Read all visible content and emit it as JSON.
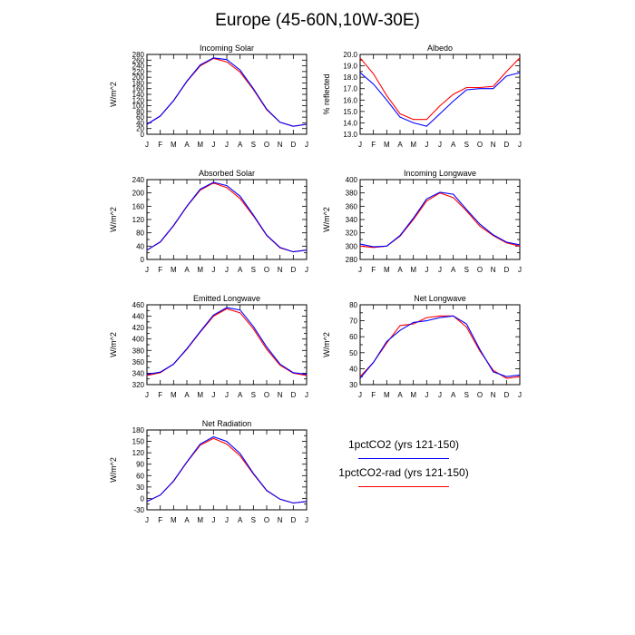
{
  "title": "Europe (45-60N,10W-30E)",
  "months": [
    "J",
    "F",
    "M",
    "A",
    "M",
    "J",
    "J",
    "A",
    "S",
    "O",
    "N",
    "D",
    "J"
  ],
  "legend": {
    "items": [
      {
        "label": "1pctCO2 (yrs 121-150)",
        "color": "#0000ff"
      },
      {
        "label": "1pctCO2-rad (yrs 121-150)",
        "color": "#ff0000"
      }
    ]
  },
  "chart_data": [
    {
      "type": "line",
      "title": "Incoming Solar",
      "ylabel": "W/m^2",
      "ylim": [
        0,
        280
      ],
      "yticks": [
        0,
        20,
        40,
        60,
        80,
        100,
        120,
        140,
        160,
        180,
        200,
        220,
        240,
        260,
        280
      ],
      "ytick_labels": [
        "0",
        "20",
        "40",
        "60",
        "80",
        "100",
        "120",
        "140",
        "160",
        "180",
        "200",
        "220",
        "240",
        "260",
        "280"
      ],
      "categories": [
        "J",
        "F",
        "M",
        "A",
        "M",
        "J",
        "J",
        "A",
        "S",
        "O",
        "N",
        "D",
        "J"
      ],
      "series": [
        {
          "color": "#0000ff",
          "values": [
            35,
            64,
            118,
            186,
            243,
            268,
            262,
            225,
            160,
            88,
            42,
            28,
            35
          ]
        },
        {
          "color": "#ff0000",
          "values": [
            35,
            64,
            117,
            185,
            240,
            266,
            254,
            218,
            157,
            86,
            42,
            28,
            35
          ]
        }
      ]
    },
    {
      "type": "line",
      "title": "Albedo",
      "ylabel": "% reflected",
      "ylim": [
        13,
        20
      ],
      "yticks": [
        13,
        13.5,
        14,
        14.5,
        15,
        15.5,
        16,
        16.5,
        17,
        17.5,
        18,
        18.5,
        19,
        19.5,
        20
      ],
      "ytick_labels": [
        "13.0",
        "",
        "14.0",
        "",
        "15.0",
        "",
        "16.0",
        "",
        "17.0",
        "",
        "18.0",
        "",
        "19.0",
        "",
        "20.0"
      ],
      "categories": [
        "J",
        "F",
        "M",
        "A",
        "M",
        "J",
        "J",
        "A",
        "S",
        "O",
        "N",
        "D",
        "J"
      ],
      "series": [
        {
          "color": "#0000ff",
          "values": [
            18.4,
            17.4,
            16.0,
            14.5,
            14.0,
            13.7,
            14.8,
            15.9,
            16.9,
            17.0,
            17.0,
            18.1,
            18.4
          ]
        },
        {
          "color": "#ff0000",
          "values": [
            19.7,
            18.3,
            16.4,
            14.8,
            14.3,
            14.3,
            15.5,
            16.5,
            17.1,
            17.1,
            17.2,
            18.5,
            19.7
          ]
        }
      ]
    },
    {
      "type": "line",
      "title": "Absorbed Solar",
      "ylabel": "W/m^2",
      "ylim": [
        0,
        240
      ],
      "yticks": [
        0,
        20,
        40,
        60,
        80,
        100,
        120,
        140,
        160,
        180,
        200,
        220,
        240
      ],
      "ytick_labels": [
        "0",
        "",
        "40",
        "",
        "80",
        "",
        "120",
        "",
        "160",
        "",
        "200",
        "",
        "240"
      ],
      "categories": [
        "J",
        "F",
        "M",
        "A",
        "M",
        "J",
        "J",
        "A",
        "S",
        "O",
        "N",
        "D",
        "J"
      ],
      "series": [
        {
          "color": "#0000ff",
          "values": [
            28,
            53,
            102,
            160,
            211,
            232,
            222,
            190,
            134,
            73,
            36,
            23,
            28
          ]
        },
        {
          "color": "#ff0000",
          "values": [
            28,
            52,
            101,
            159,
            208,
            230,
            216,
            183,
            131,
            72,
            35,
            23,
            28
          ]
        }
      ]
    },
    {
      "type": "line",
      "title": "Incoming Longwave",
      "ylabel": "W/m^2",
      "ylim": [
        280,
        400
      ],
      "yticks": [
        280,
        290,
        300,
        310,
        320,
        330,
        340,
        350,
        360,
        370,
        380,
        390,
        400
      ],
      "ytick_labels": [
        "280",
        "",
        "300",
        "",
        "320",
        "",
        "340",
        "",
        "360",
        "",
        "380",
        "",
        "400"
      ],
      "categories": [
        "J",
        "F",
        "M",
        "A",
        "M",
        "J",
        "J",
        "A",
        "S",
        "O",
        "N",
        "D",
        "J"
      ],
      "series": [
        {
          "color": "#0000ff",
          "values": [
            303,
            299,
            300,
            316,
            342,
            371,
            381,
            378,
            355,
            333,
            317,
            306,
            302
          ]
        },
        {
          "color": "#ff0000",
          "values": [
            300,
            298,
            300,
            315,
            340,
            368,
            380,
            373,
            353,
            330,
            316,
            305,
            300
          ]
        }
      ]
    },
    {
      "type": "line",
      "title": "Emitted Longwave",
      "ylabel": "W/m^2",
      "ylim": [
        320,
        460
      ],
      "yticks": [
        320,
        330,
        340,
        350,
        360,
        370,
        380,
        390,
        400,
        410,
        420,
        430,
        440,
        450,
        460
      ],
      "ytick_labels": [
        "320",
        "",
        "340",
        "",
        "360",
        "",
        "380",
        "",
        "400",
        "",
        "420",
        "",
        "440",
        "",
        "460"
      ],
      "categories": [
        "J",
        "F",
        "M",
        "A",
        "M",
        "J",
        "J",
        "A",
        "S",
        "O",
        "N",
        "D",
        "J"
      ],
      "series": [
        {
          "color": "#0000ff",
          "values": [
            338,
            342,
            356,
            383,
            413,
            442,
            455,
            451,
            422,
            386,
            356,
            341,
            338
          ]
        },
        {
          "color": "#ff0000",
          "values": [
            336,
            341,
            356,
            382,
            412,
            440,
            453,
            446,
            418,
            382,
            354,
            340,
            336
          ]
        }
      ]
    },
    {
      "type": "line",
      "title": "Net Longwave",
      "ylabel": "W/m^2",
      "ylim": [
        30,
        80
      ],
      "yticks": [
        30,
        35,
        40,
        45,
        50,
        55,
        60,
        65,
        70,
        75,
        80
      ],
      "ytick_labels": [
        "30",
        "",
        "40",
        "",
        "50",
        "",
        "60",
        "",
        "70",
        "",
        "80"
      ],
      "categories": [
        "J",
        "F",
        "M",
        "A",
        "M",
        "J",
        "J",
        "A",
        "S",
        "O",
        "N",
        "D",
        "J"
      ],
      "series": [
        {
          "color": "#0000ff",
          "values": [
            34,
            44,
            57,
            64,
            69,
            70,
            72,
            73,
            68,
            52,
            38,
            35,
            36
          ]
        },
        {
          "color": "#ff0000",
          "values": [
            35,
            44,
            56,
            67,
            68,
            72,
            73,
            73,
            66,
            51,
            39,
            34,
            35
          ]
        }
      ]
    },
    {
      "type": "line",
      "title": "Net Radiation",
      "ylabel": "W/m^2",
      "ylim": [
        -30,
        180
      ],
      "yticks": [
        -30,
        -15,
        0,
        15,
        30,
        45,
        60,
        75,
        90,
        105,
        120,
        135,
        150,
        165,
        180
      ],
      "ytick_labels": [
        "-30",
        "",
        "0",
        "",
        "30",
        "",
        "60",
        "",
        "90",
        "",
        "120",
        "",
        "150",
        "",
        "180"
      ],
      "categories": [
        "J",
        "F",
        "M",
        "A",
        "M",
        "J",
        "J",
        "A",
        "S",
        "O",
        "N",
        "D",
        "J"
      ],
      "series": [
        {
          "color": "#0000ff",
          "values": [
            -8,
            9,
            46,
            96,
            143,
            162,
            150,
            118,
            66,
            21,
            -2,
            -12,
            -8
          ]
        },
        {
          "color": "#ff0000",
          "values": [
            -8,
            9,
            45,
            95,
            140,
            158,
            143,
            112,
            64,
            20,
            -2,
            -12,
            -8
          ]
        }
      ]
    }
  ]
}
